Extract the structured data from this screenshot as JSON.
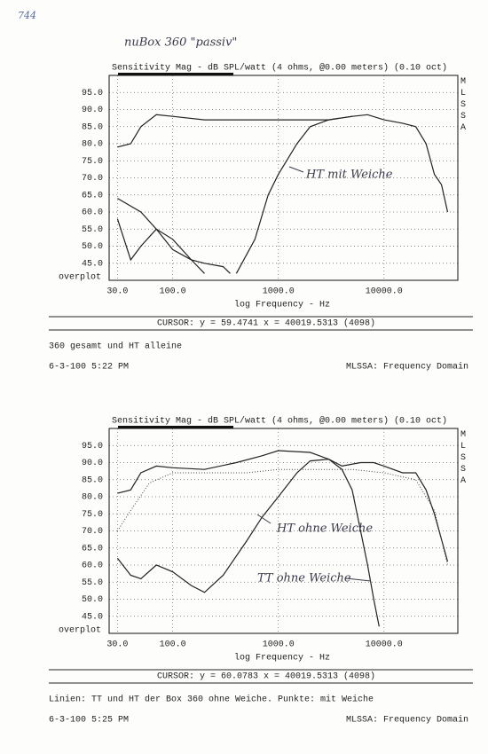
{
  "page_number": "744",
  "handwritten_title": "nuBox 360 \"passiv\"",
  "chart_data": [
    {
      "type": "line",
      "title": "Sensitivity Mag - dB SPL/watt (4 ohms, @0.00 meters) (0.10 oct)",
      "x_label": "log Frequency - Hz",
      "corner_label": "overplot",
      "side_label": "MLSSA",
      "log_x": true,
      "xlim": [
        25,
        50000
      ],
      "xticks": [
        {
          "value": 30,
          "label": "30.0"
        },
        {
          "value": 100,
          "label": "100.0"
        },
        {
          "value": 1000,
          "label": "1000.0"
        },
        {
          "value": 10000,
          "label": "10000.0"
        }
      ],
      "ylim": [
        40,
        100
      ],
      "yticks": [
        {
          "value": 45,
          "label": "45.0"
        },
        {
          "value": 50,
          "label": "50.0"
        },
        {
          "value": 55,
          "label": "55.0"
        },
        {
          "value": 60,
          "label": "60.0"
        },
        {
          "value": 65,
          "label": "65.0"
        },
        {
          "value": 70,
          "label": "70.0"
        },
        {
          "value": 75,
          "label": "75.0"
        },
        {
          "value": 80,
          "label": "80.0"
        },
        {
          "value": 85,
          "label": "85.0"
        },
        {
          "value": 90,
          "label": "90.0"
        },
        {
          "value": 95,
          "label": "95.0"
        }
      ],
      "grid": true,
      "series": [
        {
          "color": "#222222",
          "style": "solid",
          "x": [
            30,
            40,
            50,
            70,
            100,
            200,
            500,
            1000,
            2000,
            3000,
            5000,
            7000,
            10000,
            15000,
            20000,
            25000,
            30000,
            35000,
            40000
          ],
          "values": [
            79,
            80,
            85,
            88.5,
            88,
            87,
            87,
            87,
            87,
            87,
            88,
            88.5,
            87,
            86,
            85,
            80,
            71,
            68,
            60
          ]
        },
        {
          "color": "#222222",
          "style": "solid",
          "x": [
            400,
            600,
            800,
            1000,
            1500,
            2000,
            3000,
            5000
          ],
          "values": [
            42,
            52,
            65,
            71,
            80,
            85,
            87,
            88
          ]
        },
        {
          "color": "#222222",
          "style": "solid",
          "x": [
            30,
            40,
            50,
            70,
            100,
            150,
            200
          ],
          "values": [
            58,
            46,
            50,
            55,
            52,
            46,
            42
          ]
        },
        {
          "color": "#222222",
          "style": "solid",
          "x": [
            30,
            50,
            70,
            100,
            150,
            200,
            300,
            350
          ],
          "values": [
            64,
            60,
            55,
            49,
            46,
            45,
            44,
            42
          ]
        }
      ],
      "annotations": [
        "HT mit Weiche"
      ],
      "cursor": "CURSOR: y = 59.4741 x = 40019.5313 (4098)",
      "caption": "360 gesamt und HT alleine",
      "date": "6-3-100 5:22 PM",
      "footer": "MLSSA: Frequency Domain"
    },
    {
      "type": "line",
      "title": "Sensitivity Mag - dB SPL/watt (4 ohms, @0.00 meters) (0.10 oct)",
      "x_label": "log Frequency - Hz",
      "corner_label": "overplot",
      "side_label": "MLSSA",
      "log_x": true,
      "xlim": [
        25,
        50000
      ],
      "xticks": [
        {
          "value": 30,
          "label": "30.0"
        },
        {
          "value": 100,
          "label": "100.0"
        },
        {
          "value": 1000,
          "label": "1000.0"
        },
        {
          "value": 10000,
          "label": "10000.0"
        }
      ],
      "ylim": [
        40,
        100
      ],
      "yticks": [
        {
          "value": 45,
          "label": "45.0"
        },
        {
          "value": 50,
          "label": "50.0"
        },
        {
          "value": 55,
          "label": "55.0"
        },
        {
          "value": 60,
          "label": "60.0"
        },
        {
          "value": 65,
          "label": "65.0"
        },
        {
          "value": 70,
          "label": "70.0"
        },
        {
          "value": 75,
          "label": "75.0"
        },
        {
          "value": 80,
          "label": "80.0"
        },
        {
          "value": 85,
          "label": "85.0"
        },
        {
          "value": 90,
          "label": "90.0"
        },
        {
          "value": 95,
          "label": "95.0"
        }
      ],
      "grid": true,
      "series": [
        {
          "color": "#222222",
          "style": "solid",
          "x": [
            30,
            40,
            50,
            70,
            100,
            200,
            400,
            700,
            1000,
            2000,
            3000,
            4000,
            5000,
            6000,
            7000,
            8000,
            9000
          ],
          "values": [
            81,
            82,
            87,
            89,
            88.5,
            88,
            90,
            92,
            93.5,
            93,
            91,
            88,
            82,
            70,
            60,
            50,
            42
          ]
        },
        {
          "color": "#222222",
          "style": "solid",
          "x": [
            30,
            40,
            50,
            70,
            100,
            150,
            200,
            300,
            500,
            700,
            1000,
            1500,
            2000,
            3000,
            4000,
            6000,
            8000,
            10000,
            15000,
            20000,
            25000,
            30000,
            40000
          ],
          "values": [
            62,
            57,
            56,
            60,
            58,
            54,
            52,
            57,
            67,
            74,
            80,
            87,
            90.5,
            91,
            89,
            90,
            90,
            89,
            87,
            87,
            82,
            75,
            61
          ]
        },
        {
          "color": "#444444",
          "style": "dotted",
          "x": [
            30,
            40,
            60,
            100,
            200,
            500,
            1000,
            2000,
            5000,
            10000,
            20000,
            30000,
            40000
          ],
          "values": [
            70,
            76,
            84,
            87,
            87,
            87,
            88,
            88,
            88,
            87,
            85,
            76,
            60
          ]
        }
      ],
      "annotations": [
        "HT ohne Weiche",
        "TT ohne Weiche"
      ],
      "cursor": "CURSOR: y = 60.0783 x = 40019.5313 (4098)",
      "caption": "Linien: TT und HT der Box 360 ohne Weiche. Punkte: mit Weiche",
      "date": "6-3-100 5:25 PM",
      "footer": "MLSSA: Frequency Domain"
    }
  ]
}
